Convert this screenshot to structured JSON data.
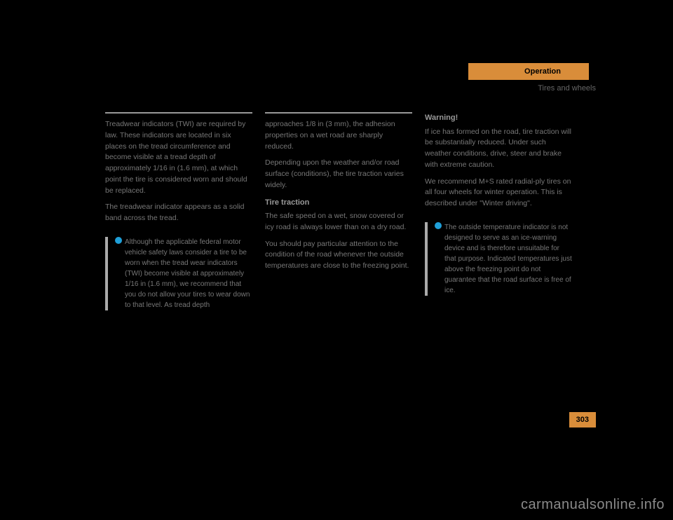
{
  "header": {
    "tab": "Operation",
    "section": "Tires and wheels"
  },
  "col1": {
    "p1": "Treadwear indicators (TWI) are required by law. These indicators are located in six places on the tread circumference and become visible at a tread depth of approximately 1/16 in (1.6 mm), at which point the tire is considered worn and should be replaced.",
    "p2": "The treadwear indicator appears as a solid band across the tread.",
    "info": "Although the applicable federal motor vehicle safety laws consider a tire to be worn when the tread wear indicators (TWI) become visible at approximately 1/16 in (1.6 mm), we recommend that you do not allow your tires to wear down to that level. As tread depth"
  },
  "col2": {
    "heading": "Tire traction",
    "p1": "approaches 1/8 in (3 mm), the adhesion properties on a wet road are sharply reduced.",
    "p2": "Depending upon the weather and/or road surface (conditions), the tire traction varies widely.",
    "p3": "The safe speed on a wet, snow covered or icy road is always lower than on a dry road.",
    "p4": "You should pay particular attention to the condition of the road whenever the outside temperatures are close to the freezing point."
  },
  "col3": {
    "heading": "Warning!",
    "p1": "If ice has formed on the road, tire traction will be substantially reduced. Under such weather conditions, drive, steer and brake with extreme caution.",
    "p2": "We recommend M+S rated radial-ply tires on all four wheels for winter operation. This is described under \"Winter driving\".",
    "info": "The outside temperature indicator is not designed to serve as an ice-warning device and is therefore unsuitable for that purpose. Indicated temperatures just above the freezing point do not guarantee that the road surface is free of ice."
  },
  "pageNumber": "303",
  "watermark": "carmanualsonline.info",
  "colors": {
    "accent": "#d98d3a",
    "bullet": "#1f9fd8",
    "text": "#777"
  }
}
